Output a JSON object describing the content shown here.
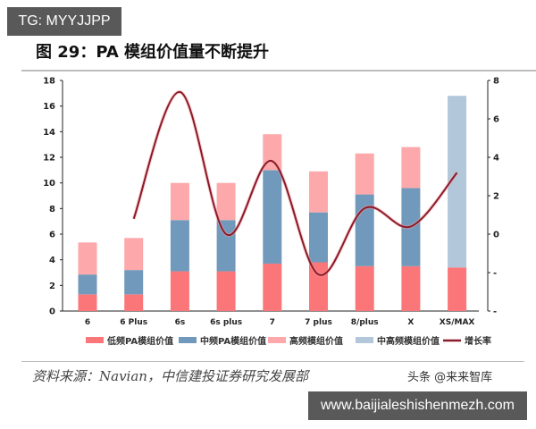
{
  "watermark_top": "TG: MYYJJPP",
  "figure_title": "图 29：PA 模组价值量不断提升",
  "source_note": "资料来源：Navian，中信建投证券研究发展部",
  "corner_watermark": "头条 @来来智库",
  "watermark_url": "www.baijialeshishenmezh.com",
  "colors": {
    "low": "#fb7678",
    "mid": "#7199bb",
    "high": "#fda8ab",
    "midhigh": "#b2c7d9",
    "line": "#8b1a2a"
  },
  "chart_data": {
    "type": "bar",
    "stacked": true,
    "title": "图 29：PA 模组价值量不断提升",
    "categories": [
      "6",
      "6 Plus",
      "6s",
      "6s plus",
      "7",
      "7 plus",
      "8/plus",
      "X",
      "XS/MAX"
    ],
    "series": [
      {
        "name": "低频PA模组价值",
        "stack_top": [
          1.3,
          1.3,
          3.1,
          3.1,
          3.7,
          3.8,
          3.5,
          3.5,
          3.4
        ]
      },
      {
        "name": "中频PA模组价值",
        "stack_top": [
          2.85,
          3.2,
          7.1,
          7.1,
          11.0,
          7.7,
          9.1,
          9.6,
          null
        ]
      },
      {
        "name": "高频模组价值",
        "stack_top": [
          5.35,
          5.7,
          10.0,
          10.0,
          13.8,
          10.9,
          12.3,
          12.8,
          null
        ]
      },
      {
        "name": "中高频模组价值",
        "stack_top": [
          null,
          null,
          null,
          null,
          null,
          null,
          null,
          null,
          16.8
        ]
      },
      {
        "name": "增长率",
        "type": "line",
        "axis": "right",
        "values": [
          null,
          0.8,
          7.4,
          0.0,
          3.8,
          -2.1,
          1.35,
          0.4,
          3.2
        ]
      }
    ],
    "ylim": [
      0,
      18
    ],
    "yticks": [
      "0",
      "2",
      "4",
      "6",
      "8",
      "10",
      "12",
      "14",
      "16",
      "18"
    ],
    "y2ticks_visible": [
      "-",
      "-",
      "0",
      "2",
      "4",
      "6",
      "8"
    ],
    "y2lim": [
      -4,
      8
    ],
    "xlabel": "",
    "ylabel": "",
    "legend_position": "bottom",
    "grid": false
  },
  "legend": [
    {
      "label": "低频PA模组价值",
      "color": "#fb7678",
      "kind": "bar"
    },
    {
      "label": "中频PA模组价值",
      "color": "#7199bb",
      "kind": "bar"
    },
    {
      "label": "高频模组价值",
      "color": "#fda8ab",
      "kind": "bar"
    },
    {
      "label": "中高频模组价值",
      "color": "#b2c7d9",
      "kind": "bar"
    },
    {
      "label": "增长率",
      "color": "#8b1a2a",
      "kind": "line"
    }
  ]
}
